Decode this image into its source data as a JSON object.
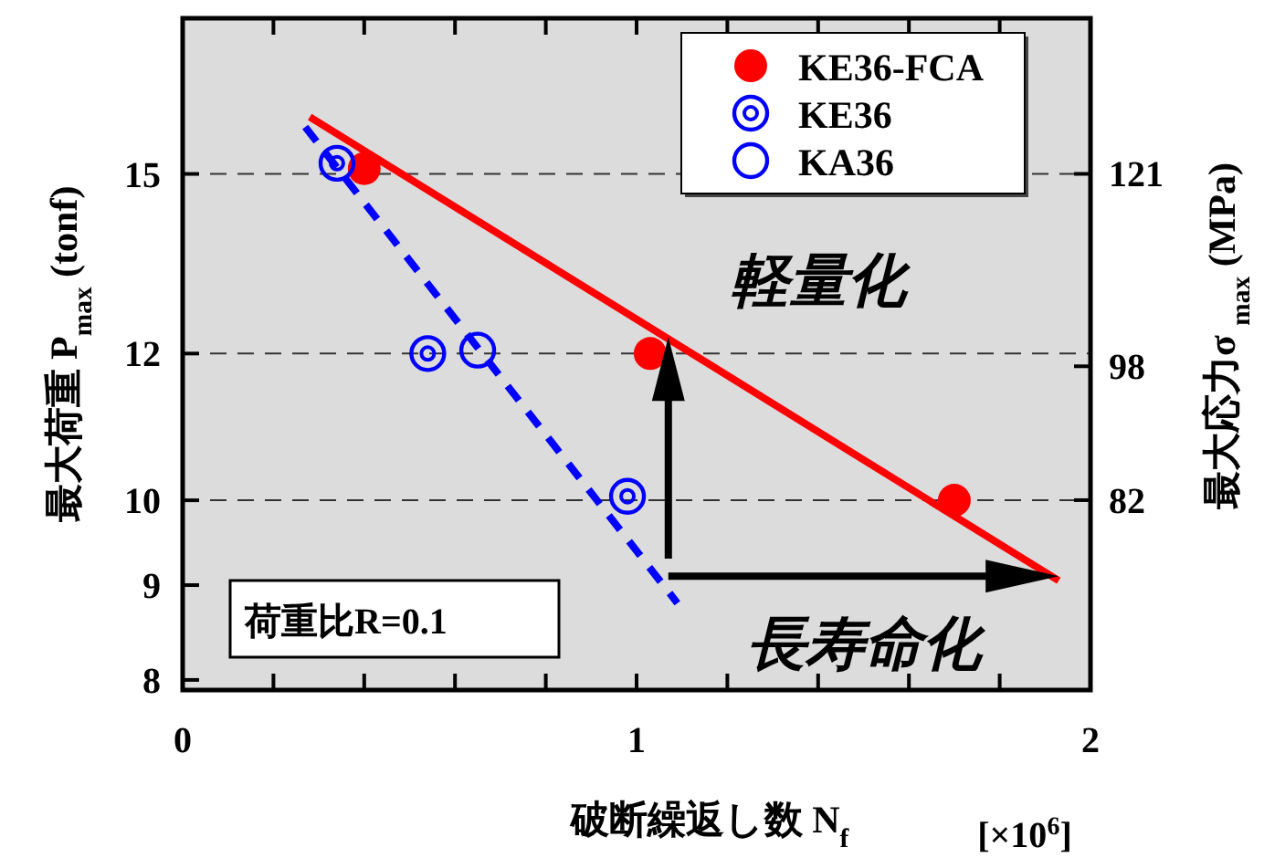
{
  "chart_data": {
    "type": "scatter",
    "xlabel": "破断繰返し数  N$_{f}$",
    "ylabel": "最大荷重  P$_{max}$  (tonf)",
    "y2label": "最大応力σ $_{max}$  (MPa)",
    "log": "y",
    "xlim": [
      0,
      2
    ],
    "xticks": [
      0,
      {
        "value": 0.2,
        "label": null
      },
      {
        "value": 0.4,
        "label": null
      },
      {
        "value": 0.6,
        "label": null
      },
      {
        "value": 0.8,
        "label": null
      },
      1,
      {
        "value": 1.2,
        "label": null
      },
      {
        "value": 1.4,
        "label": null
      },
      {
        "value": 1.6,
        "label": null
      },
      {
        "value": 1.8,
        "label": null
      },
      2
    ],
    "ylim": [
      7.9,
      18.2
    ],
    "yticks": [
      8,
      9,
      10,
      12,
      15
    ],
    "y2lim": [
      59.3,
      139.6
    ],
    "y2ticks": [
      82,
      98,
      121
    ],
    "legend": "top right",
    "series": [
      {
        "name": "KE36-FCA",
        "color": "#ff0000",
        "marker": "circle",
        "x": [
          0.4,
          1.03,
          1.7
        ],
        "values": [
          15.1,
          12.0,
          10.0
        ]
      },
      {
        "name": "KE36",
        "color": "#0000ff",
        "marker": "circle",
        "x": [
          0.34,
          0.54,
          0.98
        ],
        "values": [
          15.2,
          12.0,
          10.05
        ]
      },
      {
        "name": "KA36",
        "color": "#0000ff",
        "marker": "circle",
        "x": [
          0.65
        ],
        "values": [
          12.05
        ]
      },
      {
        "type": "line",
        "color": "#ff0000",
        "line_style": "solid",
        "x": [
          0.28,
          1.93
        ],
        "values": [
          16.1,
          9.05
        ]
      },
      {
        "type": "line",
        "color": "#0000ff",
        "line_style": "dashed",
        "x": [
          0.27,
          1.09
        ],
        "values": [
          15.9,
          8.8
        ]
      }
    ],
    "ref_lines": [
      {
        "axis": "y",
        "value": 15,
        "line_style": "dashed",
        "color": "#333333"
      },
      {
        "axis": "y",
        "value": 12,
        "line_style": "dashed",
        "color": "#333333"
      },
      {
        "axis": "y",
        "value": 10,
        "line_style": "dashed",
        "color": "#333333"
      }
    ],
    "annotations": [
      "軽量化",
      "長寿命化",
      "荷重比R=0.1",
      "[×10$^{6}$]"
    ]
  }
}
